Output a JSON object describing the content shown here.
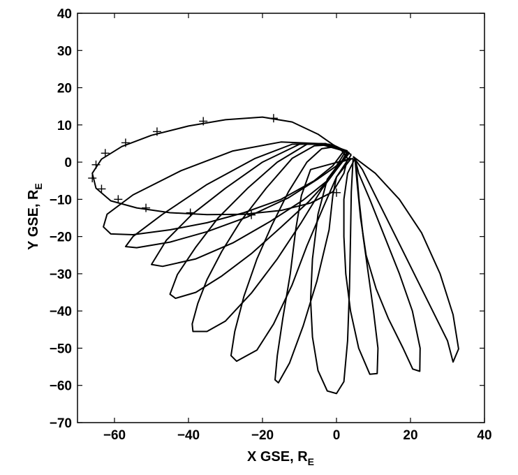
{
  "chart_data": {
    "type": "line",
    "title": "",
    "xlabel": {
      "main": "X GSE, R",
      "sub": "E"
    },
    "ylabel": {
      "main": "Y GSE, R",
      "sub": "E"
    },
    "xlim": [
      -70,
      40
    ],
    "ylim": [
      -70,
      40
    ],
    "xticks": [
      -60,
      -40,
      -20,
      0,
      20,
      40
    ],
    "yticks": [
      -70,
      -60,
      -50,
      -40,
      -30,
      -20,
      -10,
      0,
      10,
      20,
      30,
      40
    ],
    "tick_labels_x": [
      "−60",
      "−40",
      "−20",
      "0",
      "20",
      "40"
    ],
    "tick_labels_y": [
      "−70",
      "−60",
      "−50",
      "−40",
      "−30",
      "−20",
      "−10",
      "0",
      "10",
      "20",
      "30",
      "40"
    ],
    "grid": false,
    "legend": "none",
    "line_color": "#000000",
    "series": [
      {
        "points": [
          [
            1.5,
            3
          ],
          [
            -5,
            7.5
          ],
          [
            -12,
            10.8
          ],
          [
            -20,
            12.1
          ],
          [
            -30,
            11.4
          ],
          [
            -40,
            9.7
          ],
          [
            -50,
            7.2
          ],
          [
            -58,
            4.2
          ],
          [
            -63.5,
            0.8
          ],
          [
            -66,
            -3
          ],
          [
            -65,
            -7
          ],
          [
            -61,
            -10.4
          ],
          [
            -54,
            -12.3
          ],
          [
            -45,
            -13.6
          ],
          [
            -35,
            -14.1
          ],
          [
            -25,
            -14
          ],
          [
            -15,
            -13
          ],
          [
            -7,
            -11
          ],
          [
            -1,
            -8
          ],
          [
            2,
            -3
          ],
          [
            3,
            1
          ],
          [
            1.5,
            3
          ]
        ],
        "markers": [
          [
            -17,
            11.8
          ],
          [
            -36,
            11
          ],
          [
            -48.5,
            8.2
          ],
          [
            -57,
            5.2
          ],
          [
            -62.5,
            2.4
          ],
          [
            -65,
            -0.7
          ],
          [
            -66,
            -4.3
          ],
          [
            -63.5,
            -7.2
          ],
          [
            -59,
            -10
          ],
          [
            -51.5,
            -12.3
          ],
          [
            -39.5,
            -13.6
          ],
          [
            -23,
            -14.2
          ],
          [
            0,
            -8.2
          ]
        ]
      },
      {
        "points": [
          [
            2,
            3
          ],
          [
            -5,
            5
          ],
          [
            -15,
            5.4
          ],
          [
            -28,
            3
          ],
          [
            -42,
            -2.3
          ],
          [
            -55,
            -8.8
          ],
          [
            -62,
            -14
          ],
          [
            -63,
            -17.4
          ],
          [
            -61,
            -19.3
          ],
          [
            -55,
            -19.5
          ],
          [
            -45,
            -18.2
          ],
          [
            -35,
            -16.3
          ],
          [
            -25,
            -13.6
          ],
          [
            -15,
            -10
          ],
          [
            -6,
            -5
          ],
          [
            -1,
            -1
          ],
          [
            2,
            3
          ]
        ]
      },
      {
        "points": [
          [
            2.5,
            3
          ],
          [
            -4,
            5
          ],
          [
            -12,
            4.8
          ],
          [
            -22,
            1
          ],
          [
            -35,
            -6
          ],
          [
            -47,
            -14
          ],
          [
            -55,
            -20
          ],
          [
            -57,
            -22.7
          ],
          [
            -54,
            -23
          ],
          [
            -45,
            -21.5
          ],
          [
            -35,
            -18.7
          ],
          [
            -24,
            -14.7
          ],
          [
            -13,
            -9.6
          ],
          [
            -5,
            -4.5
          ],
          [
            0,
            -1
          ],
          [
            2.5,
            3
          ]
        ]
      },
      {
        "points": [
          [
            3,
            3
          ],
          [
            -3,
            5
          ],
          [
            -10,
            4.8
          ],
          [
            -20,
            0
          ],
          [
            -30,
            -7
          ],
          [
            -39,
            -14
          ],
          [
            -46,
            -21
          ],
          [
            -50,
            -27.5
          ],
          [
            -47,
            -28
          ],
          [
            -38,
            -26
          ],
          [
            -28,
            -21.7
          ],
          [
            -18,
            -16
          ],
          [
            -9,
            -10.2
          ],
          [
            -2,
            -4.6
          ],
          [
            1,
            -0.5
          ],
          [
            3,
            3
          ]
        ]
      },
      {
        "points": [
          [
            3,
            2.5
          ],
          [
            -2,
            4.8
          ],
          [
            -8,
            4.8
          ],
          [
            -16,
            0
          ],
          [
            -24,
            -7
          ],
          [
            -32,
            -15
          ],
          [
            -38,
            -22.8
          ],
          [
            -43,
            -30.2
          ],
          [
            -45,
            -35.5
          ],
          [
            -43.5,
            -36.6
          ],
          [
            -38,
            -35
          ],
          [
            -31,
            -30.6
          ],
          [
            -23,
            -24.6
          ],
          [
            -15,
            -17.5
          ],
          [
            -7.5,
            -10.6
          ],
          [
            -2,
            -4.6
          ],
          [
            1,
            -0.5
          ],
          [
            3,
            2.5
          ]
        ]
      },
      {
        "points": [
          [
            3.5,
            2.5
          ],
          [
            -1,
            4.7
          ],
          [
            -6,
            4.4
          ],
          [
            -12,
            1
          ],
          [
            -19,
            -7
          ],
          [
            -26,
            -16
          ],
          [
            -31,
            -24
          ],
          [
            -35,
            -31.6
          ],
          [
            -37.5,
            -38
          ],
          [
            -39,
            -43.5
          ],
          [
            -38.8,
            -45.5
          ],
          [
            -35,
            -45.5
          ],
          [
            -30,
            -42.7
          ],
          [
            -23,
            -35.2
          ],
          [
            -16,
            -26
          ],
          [
            -9.5,
            -16.2
          ],
          [
            -4,
            -7.3
          ],
          [
            0,
            -2
          ],
          [
            3.5,
            2.5
          ]
        ]
      },
      {
        "points": [
          [
            4,
            2
          ],
          [
            0,
            4.2
          ],
          [
            -4,
            3.6
          ],
          [
            -8,
            0
          ],
          [
            -13,
            -8
          ],
          [
            -17.5,
            -17
          ],
          [
            -21.5,
            -26
          ],
          [
            -25,
            -36
          ],
          [
            -27.5,
            -45.5
          ],
          [
            -28.5,
            -52
          ],
          [
            -27,
            -53.5
          ],
          [
            -21.5,
            -50.5
          ],
          [
            -17,
            -43.5
          ],
          [
            -12,
            -33
          ],
          [
            -8,
            -22.5
          ],
          [
            -3.6,
            -12.2
          ],
          [
            0,
            -4
          ],
          [
            4,
            2
          ]
        ]
      },
      {
        "points": [
          [
            4,
            1
          ],
          [
            -7,
            -2
          ],
          [
            -9.5,
            -9
          ],
          [
            -11,
            -18
          ],
          [
            -12.5,
            -30
          ],
          [
            -14.5,
            -42
          ],
          [
            -16,
            -52
          ],
          [
            -16.6,
            -58.5
          ],
          [
            -15.7,
            -59.3
          ],
          [
            -12.7,
            -54
          ],
          [
            -9,
            -44
          ],
          [
            -5.3,
            -32
          ],
          [
            -2,
            -18.2
          ],
          [
            -1,
            -9
          ],
          [
            0,
            -4
          ],
          [
            4,
            1
          ]
        ]
      },
      {
        "points": [
          [
            4.5,
            1
          ],
          [
            1,
            0
          ],
          [
            -2.5,
            -4.6
          ],
          [
            -5,
            -14
          ],
          [
            -6.5,
            -26
          ],
          [
            -7,
            -37
          ],
          [
            -6.5,
            -47
          ],
          [
            -5,
            -56
          ],
          [
            -2.5,
            -61.5
          ],
          [
            0,
            -62.2
          ],
          [
            2,
            -59
          ],
          [
            3,
            -48
          ],
          [
            3.5,
            -34
          ],
          [
            3.8,
            -20
          ],
          [
            4,
            -8
          ],
          [
            4.5,
            1
          ]
        ]
      },
      {
        "points": [
          [
            5,
            1
          ],
          [
            3,
            -3
          ],
          [
            2,
            -10
          ],
          [
            2,
            -20
          ],
          [
            2.5,
            -30
          ],
          [
            3.8,
            -40
          ],
          [
            6,
            -50
          ],
          [
            9,
            -57
          ],
          [
            11,
            -56.8
          ],
          [
            11.2,
            -50
          ],
          [
            10,
            -40
          ],
          [
            8.6,
            -30
          ],
          [
            7.2,
            -20
          ],
          [
            6.1,
            -10
          ],
          [
            5.5,
            -3
          ],
          [
            5,
            1
          ]
        ]
      },
      {
        "points": [
          [
            5,
            1
          ],
          [
            5.5,
            -5
          ],
          [
            6.5,
            -15
          ],
          [
            8,
            -25
          ],
          [
            10.7,
            -34
          ],
          [
            14,
            -42
          ],
          [
            18,
            -50
          ],
          [
            20.6,
            -55.6
          ],
          [
            22.5,
            -56.2
          ],
          [
            22.6,
            -50
          ],
          [
            20.5,
            -40
          ],
          [
            17,
            -30
          ],
          [
            13,
            -20
          ],
          [
            9,
            -10
          ],
          [
            6,
            -3
          ],
          [
            5,
            1
          ]
        ]
      },
      {
        "points": [
          [
            4.5,
            1.5
          ],
          [
            7,
            -2
          ],
          [
            11,
            -10
          ],
          [
            16,
            -20
          ],
          [
            21,
            -30
          ],
          [
            26,
            -40
          ],
          [
            30,
            -48
          ],
          [
            31.5,
            -53.7
          ],
          [
            33,
            -50.2
          ],
          [
            31.5,
            -41
          ],
          [
            28,
            -30
          ],
          [
            23,
            -19
          ],
          [
            17,
            -10
          ],
          [
            10.5,
            -3
          ],
          [
            4.5,
            1.5
          ]
        ]
      }
    ]
  }
}
